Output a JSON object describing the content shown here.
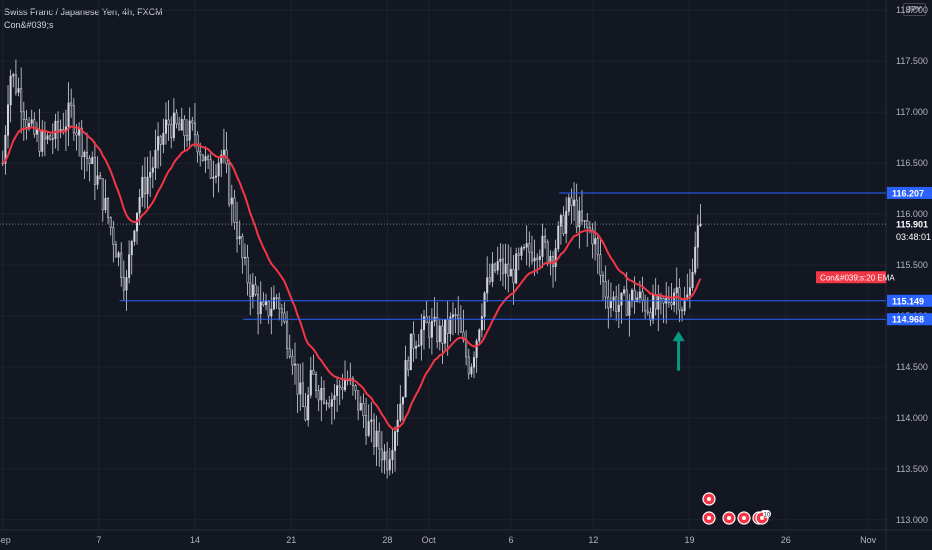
{
  "header": {
    "symbol": "Swiss Franc / Japanese Yen, 4h, FXCM",
    "indicator": "Con&#039;s"
  },
  "currency_badge": "JPY",
  "colors": {
    "background": "#131722",
    "grid": "#1e222d",
    "axis_text": "#b2b5be",
    "candle": "#d1d4dc",
    "ema": "#f23645",
    "level_line": "#2962ff",
    "level_tag": "#2962ff",
    "arrow": "#089981",
    "price_line": "#787b86"
  },
  "chart_data": {
    "type": "candlestick",
    "symbol": "CHFJPY",
    "timeframe": "4h",
    "ylim": [
      112.9,
      118.1
    ],
    "y_ticks": [
      113.0,
      113.5,
      114.0,
      114.5,
      115.0,
      115.5,
      116.0,
      116.5,
      117.0,
      117.5,
      118.0
    ],
    "y_tick_labels": [
      "113.000",
      "113.500",
      "114.000",
      "114.500",
      "115.000",
      "115.500",
      "116.000",
      "116.500",
      "117.000",
      "117.500",
      "118.000"
    ],
    "x_ticks": [
      {
        "label": "Sep",
        "day": 0
      },
      {
        "label": "7",
        "day": 7
      },
      {
        "label": "14",
        "day": 14
      },
      {
        "label": "21",
        "day": 21
      },
      {
        "label": "28",
        "day": 28
      },
      {
        "label": "Oct",
        "day": 31
      },
      {
        "label": "6",
        "day": 37
      },
      {
        "label": "12",
        "day": 43
      },
      {
        "label": "19",
        "day": 50
      },
      {
        "label": "26",
        "day": 57
      },
      {
        "label": "Nov",
        "day": 63
      }
    ],
    "x_range_days": [
      -0.2,
      64.3
    ],
    "close_path": [
      [
        0.0,
        116.5
      ],
      [
        0.5,
        117.4
      ],
      [
        1.2,
        117.2
      ],
      [
        2.0,
        116.8
      ],
      [
        3.0,
        116.7
      ],
      [
        4.0,
        116.8
      ],
      [
        5.0,
        117.0
      ],
      [
        6.0,
        116.6
      ],
      [
        7.0,
        116.3
      ],
      [
        8.0,
        115.8
      ],
      [
        9.0,
        115.3
      ],
      [
        9.5,
        115.9
      ],
      [
        10.0,
        116.2
      ],
      [
        11.0,
        116.5
      ],
      [
        12.0,
        116.9
      ],
      [
        13.0,
        116.8
      ],
      [
        14.0,
        116.8
      ],
      [
        15.0,
        116.4
      ],
      [
        16.0,
        116.6
      ],
      [
        16.5,
        116.2
      ],
      [
        17.0,
        115.9
      ],
      [
        17.5,
        115.5
      ],
      [
        18.0,
        115.3
      ],
      [
        19.0,
        115.0
      ],
      [
        20.0,
        115.2
      ],
      [
        20.5,
        114.9
      ],
      [
        21.0,
        114.7
      ],
      [
        21.5,
        114.3
      ],
      [
        22.0,
        114.0
      ],
      [
        22.5,
        114.4
      ],
      [
        23.0,
        114.3
      ],
      [
        24.0,
        114.2
      ],
      [
        25.0,
        114.4
      ],
      [
        26.0,
        114.1
      ],
      [
        27.0,
        113.8
      ],
      [
        28.0,
        113.6
      ],
      [
        28.5,
        113.9
      ],
      [
        29.0,
        114.2
      ],
      [
        29.5,
        114.6
      ],
      [
        30.0,
        114.8
      ],
      [
        31.0,
        114.9
      ],
      [
        32.0,
        114.8
      ],
      [
        33.0,
        115.0
      ],
      [
        33.5,
        114.7
      ],
      [
        34.0,
        114.5
      ],
      [
        34.5,
        114.8
      ],
      [
        35.0,
        115.2
      ],
      [
        36.0,
        115.5
      ],
      [
        37.0,
        115.4
      ],
      [
        38.0,
        115.6
      ],
      [
        39.0,
        115.7
      ],
      [
        40.0,
        115.6
      ],
      [
        41.0,
        116.0
      ],
      [
        41.5,
        116.1
      ],
      [
        42.0,
        115.9
      ],
      [
        43.0,
        115.8
      ],
      [
        43.5,
        115.4
      ],
      [
        44.0,
        115.2
      ],
      [
        45.0,
        115.1
      ],
      [
        46.0,
        115.2
      ],
      [
        47.0,
        115.1
      ],
      [
        48.0,
        115.05
      ],
      [
        49.0,
        115.3
      ],
      [
        49.5,
        115.1
      ],
      [
        50.0,
        115.2
      ],
      [
        50.3,
        115.7
      ],
      [
        50.8,
        115.9
      ]
    ],
    "ema_period": 20,
    "ema_label": "Con&#039;s:20 EMA",
    "levels": [
      {
        "price": 116.207,
        "label": "116.207",
        "from_day": 40.5
      },
      {
        "price": 115.149,
        "label": "115.149",
        "from_day": 8.5
      },
      {
        "price": 114.968,
        "label": "114.968",
        "from_day": 17.5
      }
    ],
    "last_price": {
      "price": 115.901,
      "label": "115.901",
      "countdown": "03:48:01"
    },
    "ema_last": 115.38,
    "arrow": {
      "day": 49.2,
      "direction": "up",
      "price_from": 114.6,
      "price_to": 114.9
    },
    "event_markers_row1": [
      ""
    ],
    "event_markers_row2": [
      "",
      "",
      "",
      "3",
      "10"
    ]
  }
}
